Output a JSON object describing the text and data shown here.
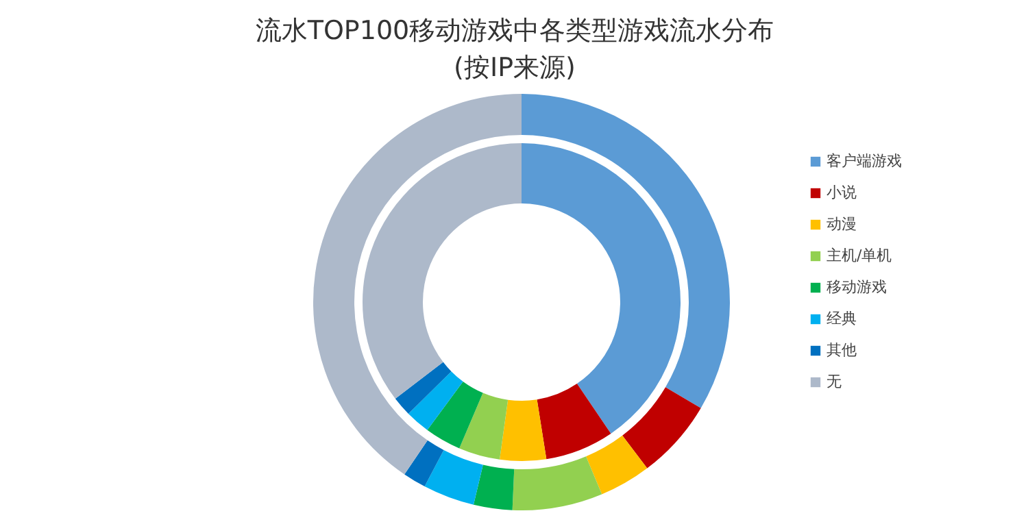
{
  "chart_data": {
    "type": "donut",
    "title": "流水TOP100移动游戏中各类型游戏流水分布\n(按IP来源)",
    "categories": [
      "客户端游戏",
      "小说",
      "动漫",
      "主机/单机",
      "移动游戏",
      "经典",
      "其他",
      "无"
    ],
    "colors": [
      "#5b9bd5",
      "#c00000",
      "#ffc000",
      "#92d050",
      "#00b050",
      "#00b0f0",
      "#0070c0",
      "#adb9ca"
    ],
    "series": [
      {
        "values": [
          40.5,
          7,
          4.7,
          4.2,
          3.7,
          2.5,
          2,
          35.4
        ]
      },
      {
        "values": [
          33.5,
          6.2,
          4,
          7,
          3,
          4,
          1.8,
          40.5
        ]
      }
    ],
    "legend": "right"
  }
}
